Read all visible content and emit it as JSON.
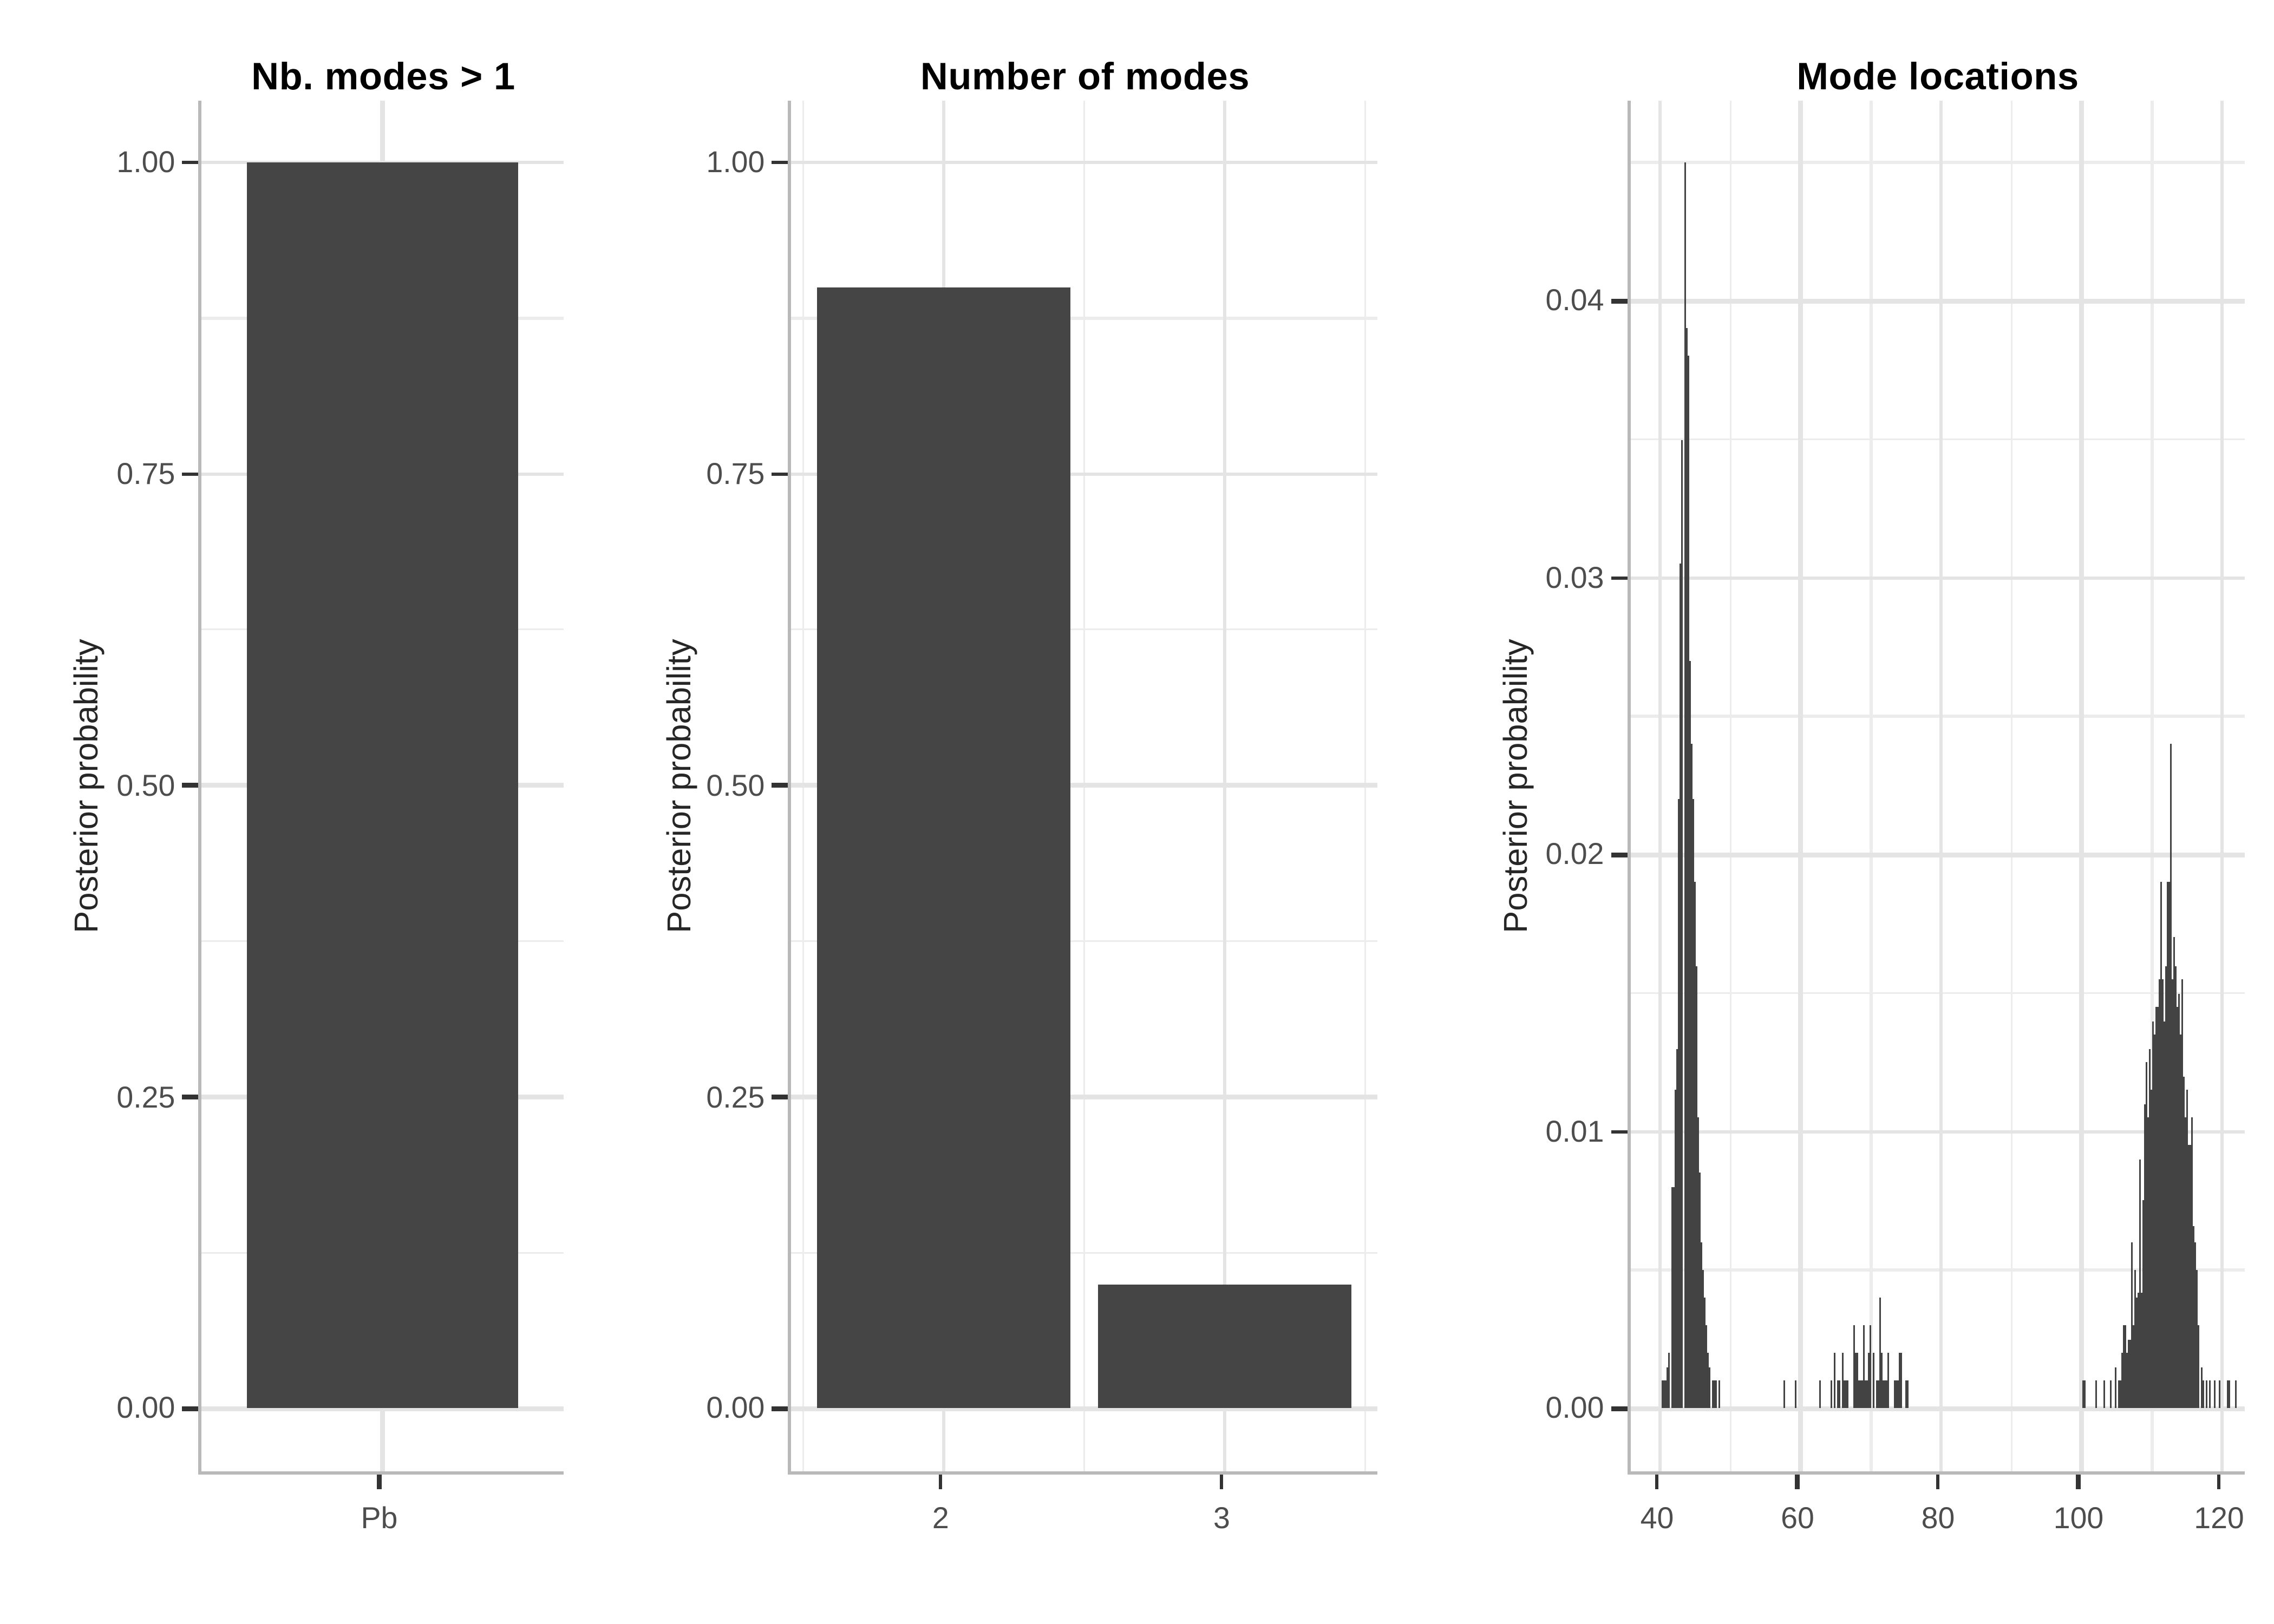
{
  "figure_title": "",
  "colors": {
    "bar": "#454545",
    "spike": "#434343",
    "grid_major": "#e4e4e4",
    "grid_minor": "#ececec",
    "axis_line": "#b9b9b9",
    "tick_mark": "#333333",
    "tick_text": "#4d4d4d",
    "axis_title_text": "#262626",
    "title_text": "#000000"
  },
  "chart_data": [
    {
      "type": "bar",
      "title": "Nb. modes > 1",
      "xlabel": "",
      "ylabel": "Posterior probability",
      "categories": [
        "Pb"
      ],
      "values": [
        1.0
      ],
      "x_positions": [
        1
      ],
      "bar_width": 0.9,
      "xlim": [
        0.4,
        1.6
      ],
      "ylim": [
        -0.05,
        1.05
      ],
      "y_breaks": [
        [
          "0.00",
          0
        ],
        [
          "0.25",
          0.25
        ],
        [
          "0.50",
          0.5
        ],
        [
          "0.75",
          0.75
        ],
        [
          "1.00",
          1.0
        ]
      ],
      "y_minor": [
        0.125,
        0.375,
        0.625,
        0.875
      ],
      "grid": "on",
      "legend": "none"
    },
    {
      "type": "bar",
      "title": "Number of modes",
      "xlabel": "",
      "ylabel": "Posterior probability",
      "categories": [
        "2",
        "3"
      ],
      "values": [
        0.9,
        0.1
      ],
      "x_positions": [
        2,
        3
      ],
      "bar_width": 0.9,
      "xlim": [
        1.455,
        3.545
      ],
      "x_minor": [
        1.5,
        2.5,
        3.5
      ],
      "ylim": [
        -0.05,
        1.05
      ],
      "y_breaks": [
        [
          "0.00",
          0
        ],
        [
          "0.25",
          0.25
        ],
        [
          "0.50",
          0.5
        ],
        [
          "0.75",
          0.75
        ],
        [
          "1.00",
          1.0
        ]
      ],
      "y_minor": [
        0.125,
        0.375,
        0.625,
        0.875
      ],
      "grid": "on",
      "legend": "none"
    },
    {
      "type": "spike",
      "title": "Mode locations",
      "xlabel": "",
      "ylabel": "Posterior probability",
      "xlim": [
        35.68,
        123.08
      ],
      "x_breaks": [
        [
          "40",
          40
        ],
        [
          "60",
          60
        ],
        [
          "80",
          80
        ],
        [
          "100",
          100
        ],
        [
          "120",
          120
        ]
      ],
      "x_minor": [
        50,
        70,
        90,
        110
      ],
      "ylim": [
        -0.00225,
        0.04725
      ],
      "y_breaks": [
        [
          "0.00",
          0
        ],
        [
          "0.01",
          0.01
        ],
        [
          "0.02",
          0.02
        ],
        [
          "0.03",
          0.03
        ],
        [
          "0.04",
          0.04
        ]
      ],
      "y_minor": [
        0.005,
        0.015,
        0.025,
        0.035,
        0.045
      ],
      "grid": "on",
      "legend": "none",
      "spikes": [
        [
          40.4,
          0.001
        ],
        [
          40.7,
          0.001
        ],
        [
          41.0,
          0.0015
        ],
        [
          41.3,
          0.002
        ],
        [
          41.6,
          0.0035
        ],
        [
          41.8,
          0.008
        ],
        [
          42.1,
          0.0115
        ],
        [
          42.35,
          0.013
        ],
        [
          42.55,
          0.0205
        ],
        [
          42.75,
          0.022
        ],
        [
          42.95,
          0.0305
        ],
        [
          43.15,
          0.035
        ],
        [
          43.45,
          0.045
        ],
        [
          43.65,
          0.039
        ],
        [
          43.85,
          0.0305
        ],
        [
          44.05,
          0.038
        ],
        [
          44.25,
          0.027
        ],
        [
          44.45,
          0.024
        ],
        [
          44.65,
          0.022
        ],
        [
          44.85,
          0.019
        ],
        [
          45.05,
          0.016
        ],
        [
          45.25,
          0.013
        ],
        [
          45.45,
          0.0105
        ],
        [
          45.65,
          0.0085
        ],
        [
          45.85,
          0.006
        ],
        [
          46.05,
          0.005
        ],
        [
          46.3,
          0.004
        ],
        [
          46.55,
          0.003
        ],
        [
          46.8,
          0.002
        ],
        [
          47.1,
          0.0015
        ],
        [
          47.4,
          0.001
        ],
        [
          47.7,
          0.001
        ],
        [
          48.0,
          0.001
        ],
        [
          48.4,
          0.001
        ],
        [
          57.7,
          0.001
        ],
        [
          59.2,
          0.001
        ],
        [
          62.7,
          0.001
        ],
        [
          64.4,
          0.001
        ],
        [
          64.8,
          0.002
        ],
        [
          65.4,
          0.001
        ],
        [
          65.6,
          0.001
        ],
        [
          65.9,
          0.002
        ],
        [
          66.2,
          0.001
        ],
        [
          66.45,
          0.001
        ],
        [
          66.65,
          0.001
        ],
        [
          67.5,
          0.003
        ],
        [
          67.8,
          0.002
        ],
        [
          68.0,
          0.002
        ],
        [
          68.35,
          0.001
        ],
        [
          68.55,
          0.001
        ],
        [
          68.75,
          0.001
        ],
        [
          69.0,
          0.003
        ],
        [
          69.2,
          0.001
        ],
        [
          69.4,
          0.001
        ],
        [
          69.6,
          0.002
        ],
        [
          69.9,
          0.003
        ],
        [
          70.4,
          0.002
        ],
        [
          70.85,
          0.001
        ],
        [
          71.05,
          0.001
        ],
        [
          71.2,
          0.004
        ],
        [
          71.4,
          0.002
        ],
        [
          71.7,
          0.001
        ],
        [
          72.1,
          0.001
        ],
        [
          72.4,
          0.002
        ],
        [
          73.5,
          0.001
        ],
        [
          73.8,
          0.001
        ],
        [
          74.2,
          0.002
        ],
        [
          75.1,
          0.001
        ],
        [
          100.3,
          0.001
        ],
        [
          102.0,
          0.001
        ],
        [
          103.2,
          0.001
        ],
        [
          104.1,
          0.001
        ],
        [
          104.8,
          0.0015
        ],
        [
          105.4,
          0.001
        ],
        [
          105.8,
          0.002
        ],
        [
          106.1,
          0.003
        ],
        [
          106.5,
          0.002
        ],
        [
          106.8,
          0.0025
        ],
        [
          107.1,
          0.006
        ],
        [
          107.35,
          0.003
        ],
        [
          107.6,
          0.005
        ],
        [
          107.85,
          0.004
        ],
        [
          108.1,
          0.0042
        ],
        [
          108.35,
          0.009
        ],
        [
          108.6,
          0.0042
        ],
        [
          108.85,
          0.0075
        ],
        [
          109.1,
          0.011
        ],
        [
          109.3,
          0.0125
        ],
        [
          109.5,
          0.0105
        ],
        [
          109.7,
          0.013
        ],
        [
          109.9,
          0.0115
        ],
        [
          110.1,
          0.014
        ],
        [
          110.3,
          0.0125
        ],
        [
          110.5,
          0.0135
        ],
        [
          110.7,
          0.0145
        ],
        [
          110.9,
          0.013
        ],
        [
          111.1,
          0.0155
        ],
        [
          111.35,
          0.019
        ],
        [
          111.55,
          0.0155
        ],
        [
          111.75,
          0.014
        ],
        [
          111.95,
          0.016
        ],
        [
          112.15,
          0.018
        ],
        [
          112.35,
          0.019
        ],
        [
          112.6,
          0.024
        ],
        [
          112.8,
          0.0155
        ],
        [
          113.05,
          0.017
        ],
        [
          113.25,
          0.015
        ],
        [
          113.45,
          0.016
        ],
        [
          113.65,
          0.0145
        ],
        [
          113.85,
          0.015
        ],
        [
          114.05,
          0.0135
        ],
        [
          114.3,
          0.0155
        ],
        [
          114.5,
          0.012
        ],
        [
          114.7,
          0.0105
        ],
        [
          114.9,
          0.0115
        ],
        [
          115.15,
          0.009
        ],
        [
          115.35,
          0.0095
        ],
        [
          115.6,
          0.0105
        ],
        [
          115.9,
          0.0066
        ],
        [
          116.15,
          0.006
        ],
        [
          116.4,
          0.005
        ],
        [
          116.7,
          0.003
        ],
        [
          117.0,
          0.0015
        ],
        [
          117.3,
          0.001
        ],
        [
          117.7,
          0.001
        ],
        [
          118.2,
          0.001
        ],
        [
          119.0,
          0.001
        ],
        [
          119.6,
          0.001
        ],
        [
          120.9,
          0.001
        ],
        [
          122.0,
          0.001
        ]
      ]
    }
  ]
}
